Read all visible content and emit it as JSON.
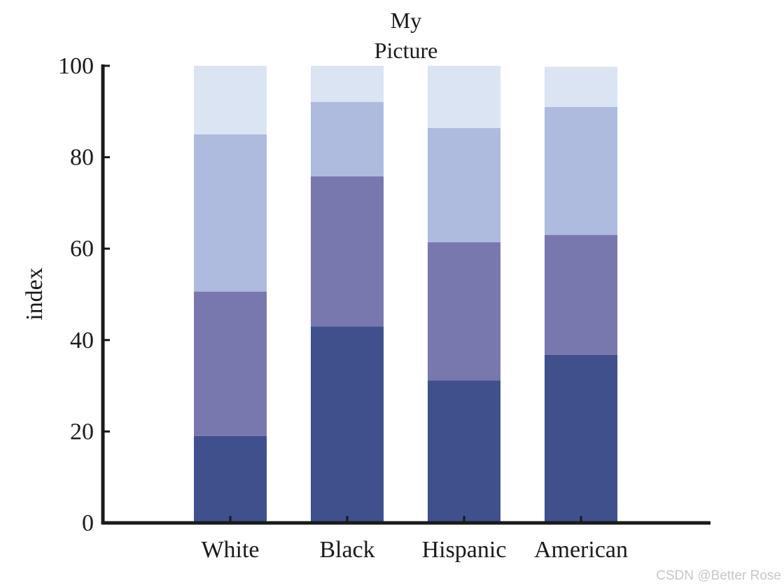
{
  "chart_data": {
    "type": "bar",
    "stacked": true,
    "title_lines": [
      "My",
      "Picture"
    ],
    "xlabel": "",
    "ylabel": "index",
    "ylim": [
      0,
      100
    ],
    "yticks": [
      0,
      20,
      40,
      60,
      80,
      100
    ],
    "categories": [
      "White",
      "Black",
      "Hispanic",
      "American"
    ],
    "series": [
      {
        "values": [
          19.0,
          43.0,
          31.2,
          36.8
        ],
        "color": "#3f508d"
      },
      {
        "values": [
          31.6,
          32.8,
          30.2,
          26.2
        ],
        "color": "#7878ae"
      },
      {
        "values": [
          34.4,
          16.3,
          25.0,
          28.0
        ],
        "color": "#afbadf"
      },
      {
        "values": [
          15.0,
          7.9,
          13.6,
          8.8
        ],
        "color": "#dae4f3"
      }
    ],
    "grid": false,
    "legend": "none"
  },
  "watermark": "CSDN @Better Rose"
}
